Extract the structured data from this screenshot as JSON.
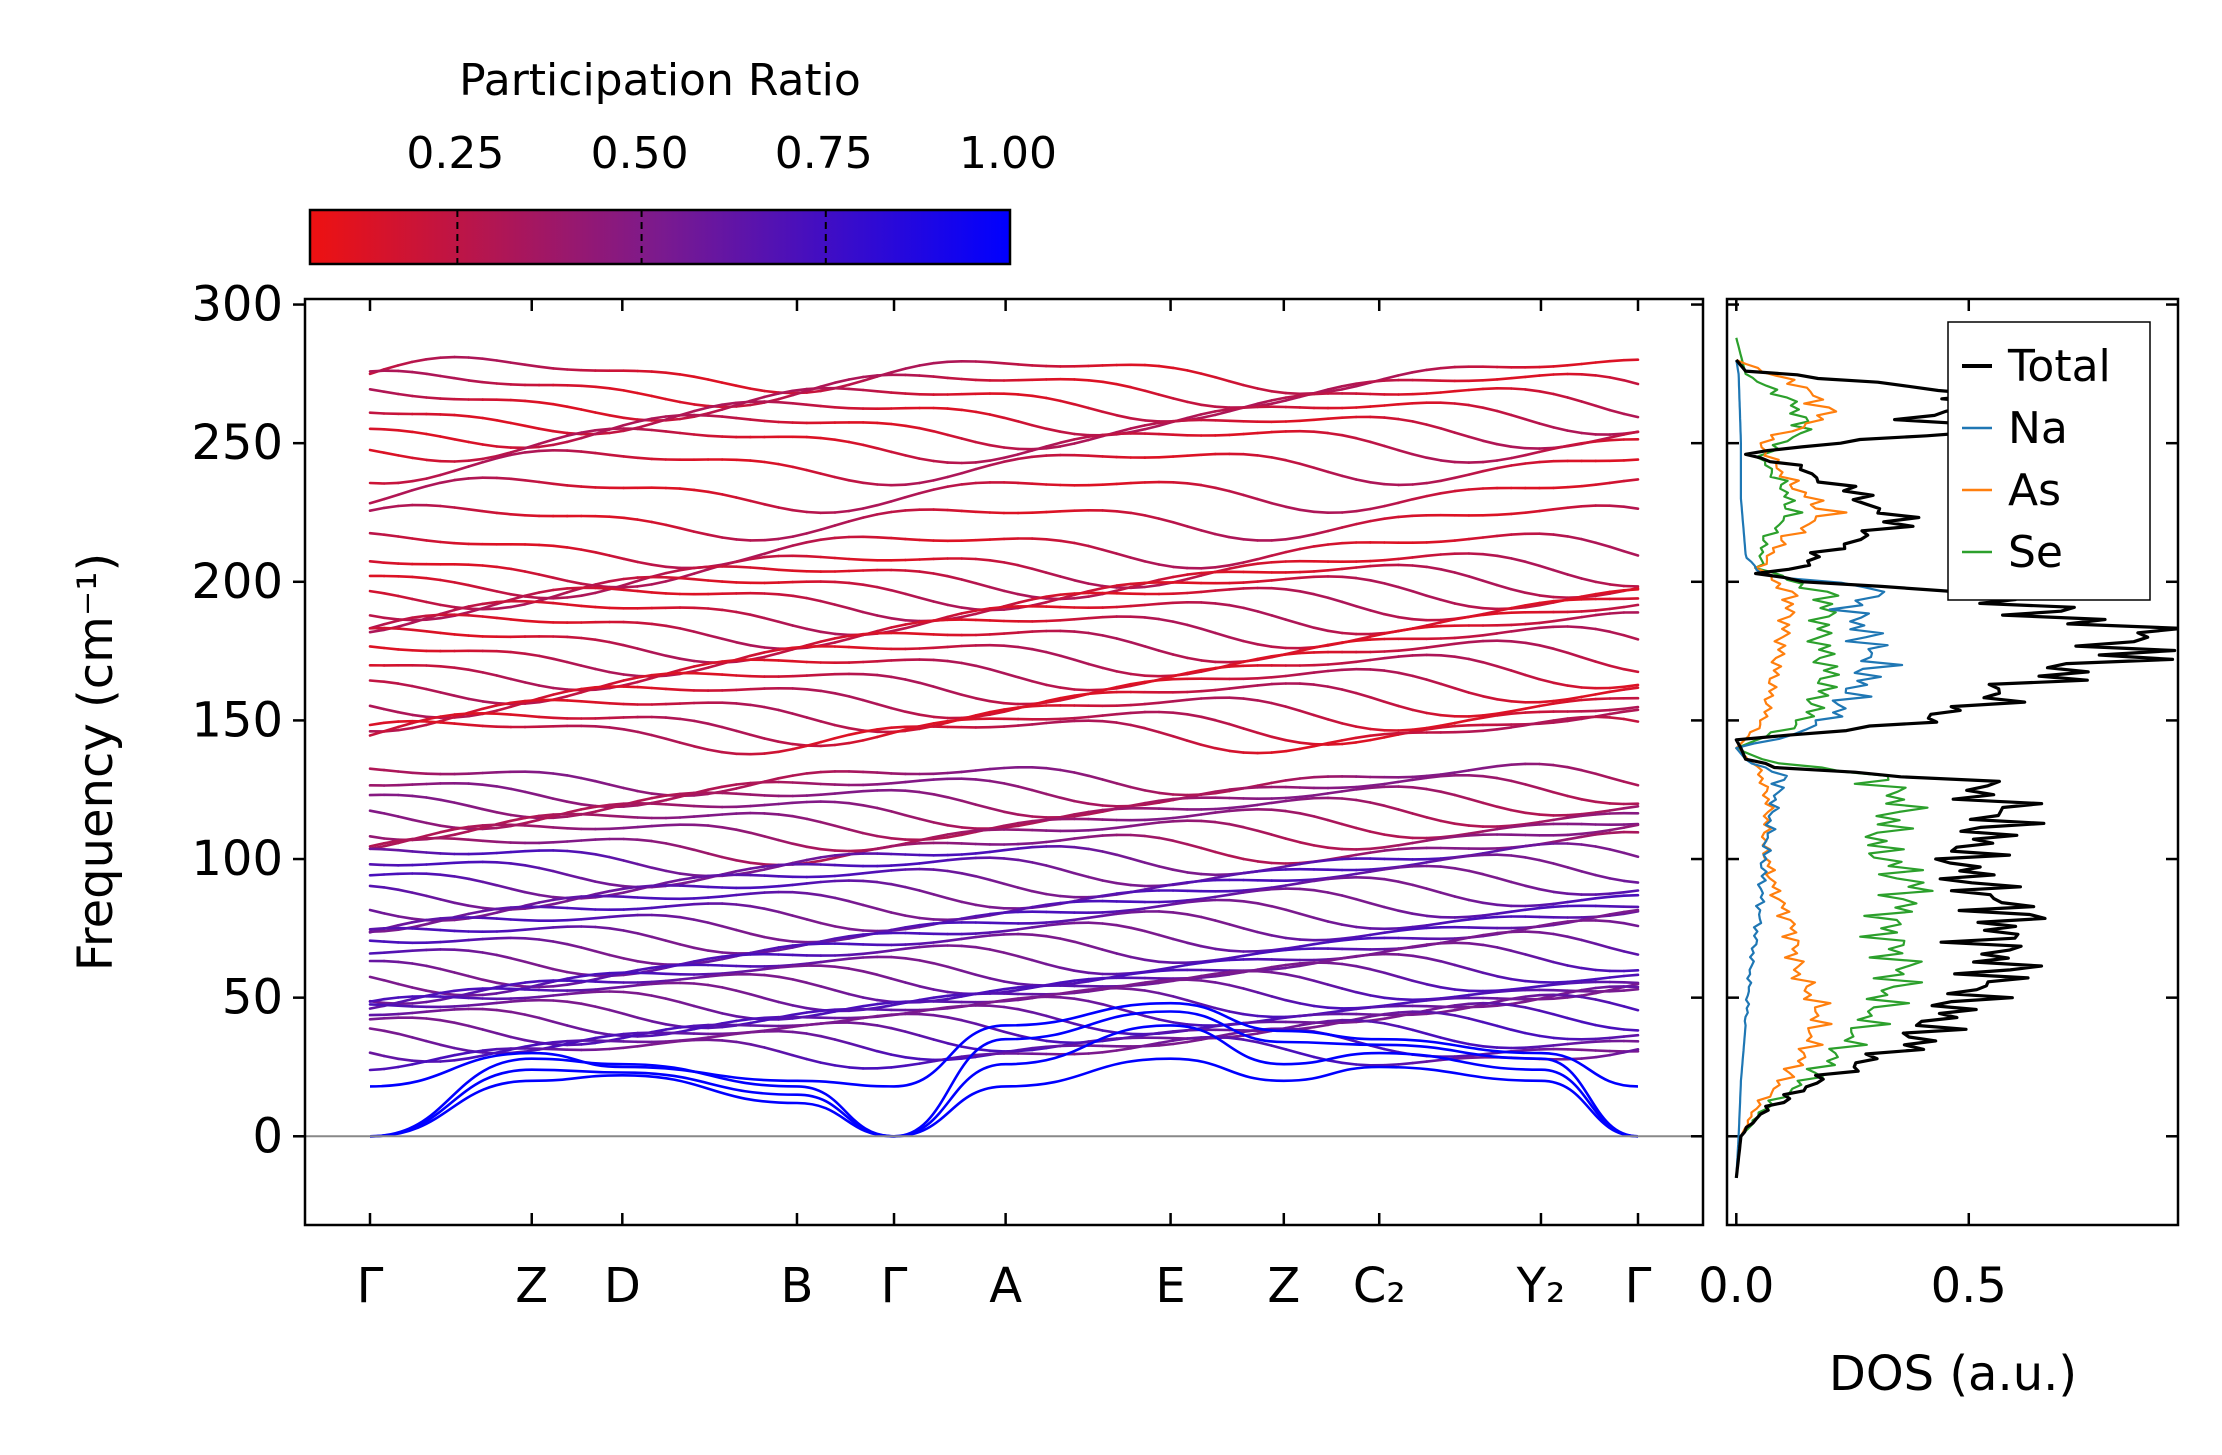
{
  "chart_data": [
    {
      "type": "line",
      "title": "",
      "xlabel": "",
      "ylabel": "Frequency (cm⁻¹)",
      "ylim": [
        -32,
        302
      ],
      "yticks": [
        0,
        50,
        100,
        150,
        200,
        250,
        300
      ],
      "kpoints": [
        "Γ",
        "Z",
        "D",
        "B",
        "Γ",
        "A",
        "E",
        "Z",
        "C₂",
        "Y₂",
        "Γ"
      ],
      "kpath_coord": [
        0,
        1.0,
        1.56,
        2.64,
        3.24,
        3.93,
        4.95,
        5.65,
        6.24,
        7.24,
        7.84
      ],
      "zero_line": 0,
      "colorbar": {
        "label": "Participation Ratio",
        "ticks": [
          "0.25",
          "0.50",
          "0.75",
          "1.00"
        ],
        "tick_values": [
          0.25,
          0.5,
          0.75,
          1.0
        ],
        "range": [
          0.05,
          1.0
        ],
        "color_low": "#ee1111",
        "color_mid": "#7b1a8e",
        "color_high": "#0000ff"
      },
      "band_levels": [
        275,
        270,
        265,
        260,
        255,
        250,
        242,
        232,
        222,
        212,
        205,
        201,
        197,
        193,
        188,
        183,
        178,
        173,
        168,
        163,
        158,
        153,
        148,
        145,
        129,
        125,
        121,
        117,
        113,
        109,
        104,
        100,
        96,
        92,
        88,
        84,
        80,
        76,
        72,
        68,
        64,
        60,
        57,
        54,
        51,
        48,
        45,
        42,
        39,
        36,
        33,
        30
      ],
      "acoustic_branches": [
        {
          "name": "acoustic-1",
          "values": [
            0,
            24,
            23,
            15,
            0,
            18,
            28,
            20,
            25,
            20,
            0
          ]
        },
        {
          "name": "acoustic-2",
          "values": [
            0,
            20,
            22,
            12,
            0,
            26,
            40,
            26,
            30,
            24,
            0
          ]
        },
        {
          "name": "acoustic-3",
          "values": [
            0,
            28,
            26,
            18,
            0,
            35,
            45,
            34,
            33,
            28,
            0
          ]
        },
        {
          "name": "acoustic-4",
          "values": [
            18,
            30,
            25,
            20,
            18,
            40,
            48,
            38,
            35,
            30,
            18
          ]
        }
      ]
    },
    {
      "type": "line",
      "xlabel": "DOS (a.u.)",
      "xlim": [
        -0.02,
        0.95
      ],
      "xticks": [
        "0.0",
        "0.5"
      ],
      "xtick_values": [
        0.0,
        0.5
      ],
      "ylim": [
        -32,
        302
      ],
      "legend": {
        "location": "top-right",
        "entries": [
          "Total",
          "Na",
          "As",
          "Se"
        ]
      },
      "series": [
        {
          "name": "Total",
          "color": "#000000",
          "stroke": 3.2,
          "freq": [
            -15,
            0,
            8,
            15,
            22,
            28,
            33,
            40,
            50,
            60,
            70,
            80,
            90,
            100,
            110,
            120,
            128,
            133,
            136,
            140,
            143,
            148,
            155,
            163,
            172,
            180,
            188,
            195,
            200,
            203,
            206,
            212,
            220,
            228,
            236,
            242,
            246,
            250,
            254,
            260,
            266,
            272,
            276,
            280
          ],
          "values": [
            0.0,
            0.01,
            0.05,
            0.12,
            0.2,
            0.3,
            0.38,
            0.42,
            0.5,
            0.58,
            0.55,
            0.6,
            0.52,
            0.48,
            0.55,
            0.58,
            0.5,
            0.1,
            0.02,
            0.01,
            0.0,
            0.35,
            0.5,
            0.62,
            0.8,
            0.9,
            0.7,
            0.55,
            0.15,
            0.05,
            0.15,
            0.2,
            0.35,
            0.3,
            0.2,
            0.12,
            0.02,
            0.2,
            0.5,
            0.4,
            0.55,
            0.3,
            0.02,
            0.0
          ]
        },
        {
          "name": "Na",
          "color": "#1f77b4",
          "stroke": 2.2,
          "freq": [
            -15,
            0,
            20,
            40,
            60,
            80,
            100,
            120,
            130,
            136,
            140,
            145,
            150,
            160,
            170,
            180,
            190,
            198,
            203,
            210,
            230,
            250,
            275,
            280
          ],
          "values": [
            0.0,
            0.005,
            0.01,
            0.02,
            0.03,
            0.05,
            0.06,
            0.08,
            0.1,
            0.02,
            0.0,
            0.12,
            0.2,
            0.25,
            0.3,
            0.28,
            0.25,
            0.3,
            0.05,
            0.02,
            0.01,
            0.01,
            0.005,
            0.0
          ]
        },
        {
          "name": "As",
          "color": "#ff7f0e",
          "stroke": 2.2,
          "freq": [
            -15,
            0,
            10,
            20,
            30,
            45,
            60,
            75,
            90,
            105,
            120,
            132,
            140,
            150,
            165,
            180,
            195,
            205,
            215,
            225,
            235,
            250,
            260,
            270,
            280
          ],
          "values": [
            0.0,
            0.01,
            0.04,
            0.1,
            0.15,
            0.18,
            0.13,
            0.12,
            0.08,
            0.06,
            0.07,
            0.05,
            0.0,
            0.06,
            0.08,
            0.1,
            0.12,
            0.05,
            0.1,
            0.2,
            0.12,
            0.05,
            0.2,
            0.15,
            0.0
          ]
        },
        {
          "name": "Se",
          "color": "#2ca02c",
          "stroke": 2.2,
          "freq": [
            -15,
            0,
            10,
            20,
            30,
            45,
            60,
            75,
            90,
            105,
            120,
            130,
            136,
            140,
            150,
            165,
            180,
            195,
            205,
            215,
            225,
            235,
            245,
            255,
            265,
            275,
            288
          ],
          "values": [
            0.0,
            0.01,
            0.06,
            0.15,
            0.22,
            0.3,
            0.36,
            0.32,
            0.38,
            0.3,
            0.36,
            0.3,
            0.05,
            0.0,
            0.15,
            0.2,
            0.18,
            0.2,
            0.05,
            0.06,
            0.12,
            0.1,
            0.05,
            0.15,
            0.12,
            0.02,
            0.0
          ]
        }
      ]
    }
  ]
}
